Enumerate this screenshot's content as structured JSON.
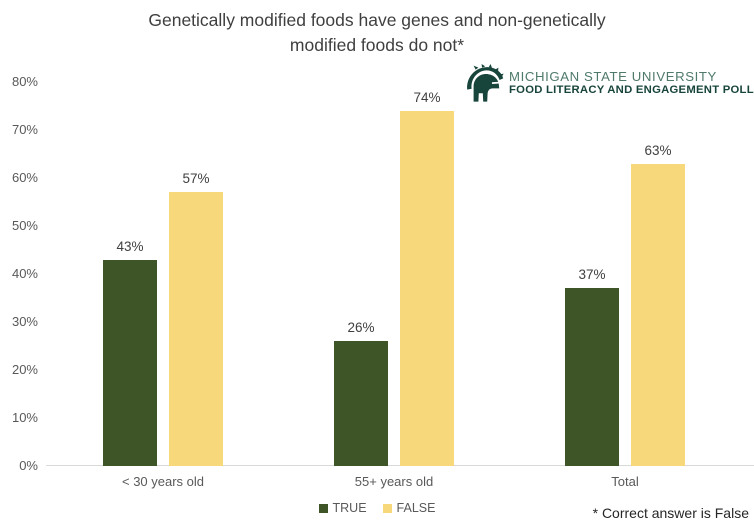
{
  "logo": {
    "org_name": "MICHIGAN STATE UNIVERSITY",
    "program_name": "FOOD LITERACY AND ENGAGEMENT POLL",
    "icon": "spartan-helmet-icon",
    "dark_green": "#18453B",
    "light_green": "#4F7A69"
  },
  "chart_data": {
    "type": "bar",
    "title": "Genetically modified foods have genes and non-genetically modified foods do not*",
    "title_lines": [
      "Genetically modified foods have genes and non-genetically",
      "modified foods do not*"
    ],
    "categories": [
      "< 30 years old",
      "55+ years old",
      "Total"
    ],
    "series": [
      {
        "name": "TRUE",
        "color": "#3E5527",
        "values": [
          43,
          26,
          37
        ]
      },
      {
        "name": "FALSE",
        "color": "#F7D87A",
        "values": [
          57,
          74,
          63
        ]
      }
    ],
    "value_suffix": "%",
    "ylim": [
      0,
      80
    ],
    "ytick_step": 10,
    "ytick_labels": [
      "0%",
      "10%",
      "20%",
      "30%",
      "40%",
      "50%",
      "60%",
      "70%",
      "80%"
    ],
    "grid": false,
    "legend_position": "bottom-center",
    "annotation": "* Correct answer is False",
    "axis_line_color": "#d9d9d9",
    "axis_label_color": "#595959",
    "value_label_color": "#3f3f3f"
  }
}
